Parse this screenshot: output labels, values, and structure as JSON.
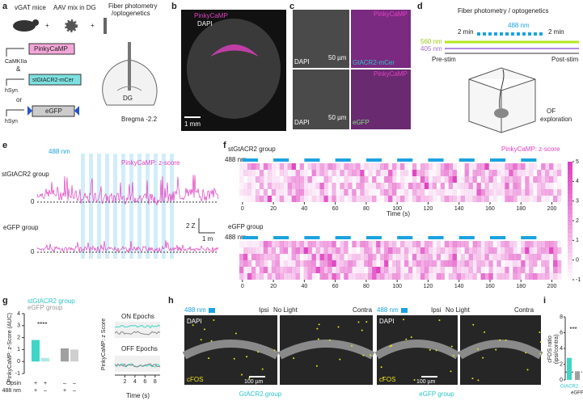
{
  "a": {
    "label": "a",
    "mice": "vGAT mice",
    "virus": "AAV mix in DG",
    "plus": "+",
    "method": [
      "Fiber photometry",
      "/optogenetics"
    ],
    "promoter1": "CaMKIIa",
    "construct1": "PinkyCaMP",
    "and": "&",
    "promoter2": "hSyn",
    "construct2": "stGtACR2-mCer",
    "or": "or",
    "promoter3": "hSyn",
    "construct3": "eGFP",
    "region": "DG",
    "bregma": "Bregma -2.2"
  },
  "b": {
    "label": "b",
    "sensor": "PinkyCaMP",
    "stain": "DAPI",
    "scale": "1 mm"
  },
  "c": {
    "label": "c",
    "dapi": "DAPI",
    "scale": "50 µm",
    "sensor": "PinkyCaMP",
    "opsin": "GtACR2-mCer",
    "control": "eGFP"
  },
  "d": {
    "label": "d",
    "title": "Fiber photometry / optogenetics",
    "stim": "488 nm",
    "pre": "2 min",
    "post": "2 min",
    "green": "560 nm",
    "violet": "405 nm",
    "pre_label": "Pre-stim",
    "post_label": "Post-stim",
    "arena": [
      "OF",
      "exploration"
    ]
  },
  "e": {
    "label": "e",
    "stim": "488 nm",
    "signal": "PinkyCaMP: z-score",
    "group1": "stGtACR2 group",
    "group2": "eGFP group",
    "zero": "0",
    "scale_y": "2 Z",
    "scale_x": "1 m"
  },
  "f": {
    "label": "f",
    "group1": "stGtACR2 group",
    "group2": "eGFP group",
    "stim": "488 nm",
    "signal": "PinkyCaMP: z-score",
    "x_label": "Time (s)",
    "xlim": [
      -2,
      206
    ],
    "xticks": [
      0,
      20,
      40,
      60,
      80,
      100,
      120,
      140,
      160,
      180,
      200
    ],
    "clim": [
      -1,
      5
    ],
    "cticks": [
      -1,
      0,
      1,
      2,
      3,
      4,
      5
    ]
  },
  "g": {
    "label": "g",
    "legend": [
      "stGtACR2 group",
      "eGFP group"
    ],
    "ylabel": "PinkyCaMP: z-Score (AUC)",
    "ylim": [
      -1,
      4
    ],
    "yticks": [
      -1,
      0,
      1,
      2,
      3,
      4
    ],
    "values": [
      1.8,
      0.3,
      1.1,
      1.0
    ],
    "colors": [
      "#3fd6c8",
      "#a8ece6",
      "#a0a0a0",
      "#cfcfcf"
    ],
    "significance": "****",
    "rows": [
      {
        "label": "Opsin",
        "marks": [
          "+",
          "+",
          "–",
          "–"
        ]
      },
      {
        "label": "488 nm",
        "marks": [
          "+",
          "–",
          "+",
          "–"
        ]
      }
    ],
    "traces": {
      "ylabel": "PinkyCaMP: z Score",
      "on": "ON Epochs",
      "off": "OFF Epochs",
      "xlabel": "Time (s)",
      "xlim": [
        0,
        9
      ],
      "xticks": [
        2,
        4,
        6,
        8
      ]
    }
  },
  "h": {
    "label": "h",
    "stim": "488 nm",
    "ipsi": "Ipsi",
    "nolight": "No Light",
    "contra": "Contra",
    "dapi": "DAPI",
    "cfos": "cFOS",
    "scale": "100 µm",
    "group1": "GtACR2 group",
    "group2": "eGFP group"
  },
  "i": {
    "label": "i",
    "ylabel": [
      "cFOS ratio",
      "(ipsi/contra)"
    ],
    "ylim": [
      0,
      8
    ],
    "yticks": [
      0,
      2,
      4,
      6,
      8
    ],
    "categories": [
      "GtACR2",
      "eGFP"
    ],
    "values": [
      2.8,
      1.1
    ],
    "colors": [
      "#3fd6c8",
      "#a0a0a0"
    ],
    "reference": 1,
    "significance": "***"
  }
}
